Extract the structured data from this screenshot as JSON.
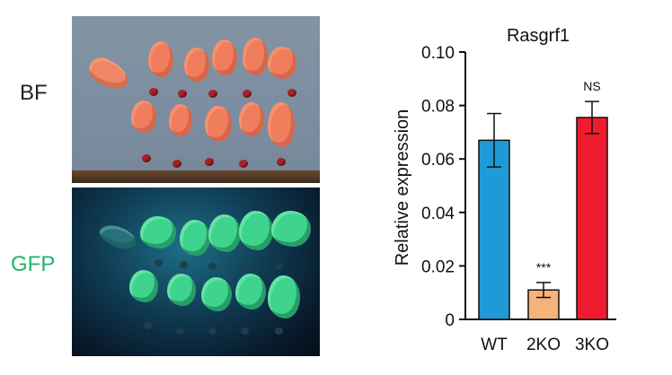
{
  "panels": {
    "bf_label": "BF",
    "gfp_label": "GFP"
  },
  "colors": {
    "bf_label": "#222222",
    "gfp_label": "#21b36a"
  },
  "chart_data": {
    "type": "bar",
    "title": "Rasgrf1",
    "xlabel": "",
    "ylabel": "Relative expression",
    "categories": [
      "WT",
      "2KO",
      "3KO"
    ],
    "values": [
      0.067,
      0.011,
      0.0755
    ],
    "errors": [
      0.01,
      0.0028,
      0.006
    ],
    "colors": [
      "#1e9ad6",
      "#f5b27a",
      "#ee1c2e"
    ],
    "significance": [
      "",
      "***",
      "NS"
    ],
    "ylim": [
      0,
      0.1
    ],
    "yticks": [
      "0",
      "0.02",
      "0.04",
      "0.06",
      "0.08",
      "0.10"
    ],
    "ytick_values": [
      0,
      0.02,
      0.04,
      0.06,
      0.08,
      0.1
    ],
    "grid": false,
    "legend": "none"
  }
}
